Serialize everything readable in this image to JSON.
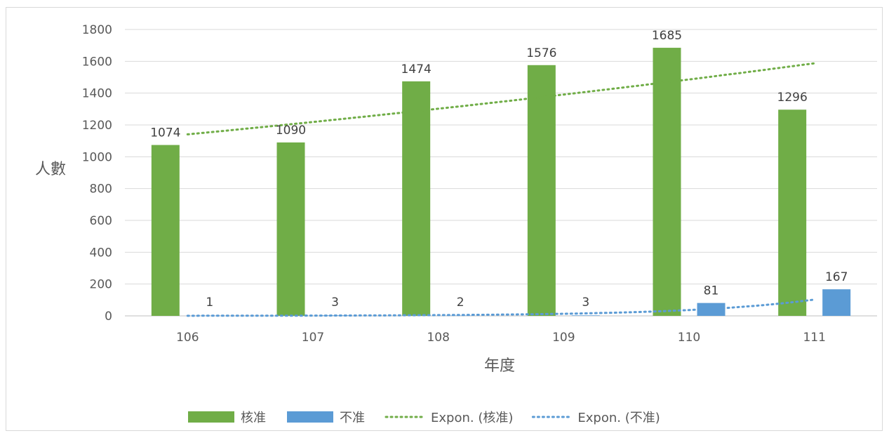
{
  "chart_data": {
    "type": "bar",
    "title": "",
    "xlabel": "年度",
    "ylabel": "人數",
    "categories": [
      "106",
      "107",
      "108",
      "109",
      "110",
      "111"
    ],
    "ylim": [
      0,
      1800
    ],
    "yticks": [
      0,
      200,
      400,
      600,
      800,
      1000,
      1200,
      1400,
      1600,
      1800
    ],
    "grid": true,
    "legend_position": "bottom",
    "series": [
      {
        "name": "核准",
        "color": "#70ad47",
        "values": [
          1074,
          1090,
          1474,
          1576,
          1685,
          1296
        ]
      },
      {
        "name": "不准",
        "color": "#5b9bd5",
        "values": [
          1,
          3,
          2,
          3,
          81,
          167
        ]
      }
    ],
    "trendlines": [
      {
        "name": "Expon. (核准)",
        "series": "核准",
        "type": "exponential",
        "color": "#70ad47",
        "style": "dotted"
      },
      {
        "name": "Expon. (不准)",
        "series": "不准",
        "type": "exponential",
        "color": "#5b9bd5",
        "style": "dotted"
      }
    ]
  }
}
